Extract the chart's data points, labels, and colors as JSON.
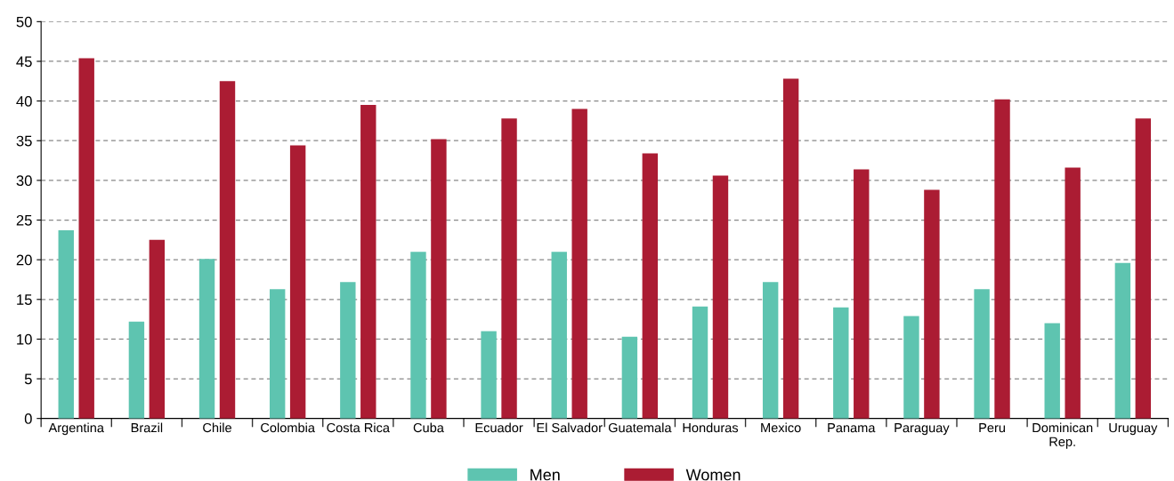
{
  "chart_data": {
    "type": "bar",
    "categories": [
      "Argentina",
      "Brazil",
      "Chile",
      "Colombia",
      "Costa Rica",
      "Cuba",
      "Ecuador",
      "El Salvador",
      "Guatemala",
      "Honduras",
      "Mexico",
      "Panama",
      "Paraguay",
      "Peru",
      "Dominican\nRep.",
      "Uruguay"
    ],
    "series": [
      {
        "name": "Men",
        "color": "#5ec4b0",
        "values": [
          23.7,
          12.2,
          20.1,
          16.3,
          17.2,
          21.0,
          11.0,
          21.0,
          10.3,
          14.1,
          17.2,
          14.0,
          12.9,
          16.3,
          12.0,
          19.6
        ]
      },
      {
        "name": "Women",
        "color": "#ab1c33",
        "values": [
          45.4,
          22.5,
          42.5,
          34.4,
          39.5,
          35.2,
          37.8,
          39.0,
          33.4,
          30.6,
          42.8,
          31.4,
          28.8,
          40.2,
          31.6,
          37.8
        ]
      }
    ],
    "ylim": [
      0,
      50
    ],
    "yticks": [
      0,
      5,
      10,
      15,
      20,
      25,
      30,
      35,
      40,
      45,
      50
    ],
    "grid": "y",
    "legend": "bottom"
  }
}
